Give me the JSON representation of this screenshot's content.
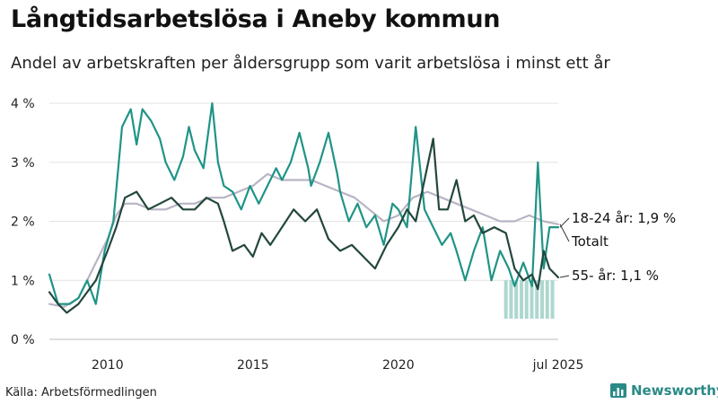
{
  "title": "Långtidsarbetslösa i Aneby kommun",
  "subtitle": "Andel av arbetskraften per åldersgrupp som varit arbetslösa i minst ett år",
  "source": "Källa: Arbetsförmedlingen",
  "brand": {
    "name": "Newsworthy",
    "icon": "bar-chart-icon",
    "color": "#2a8a86"
  },
  "chart_data": {
    "type": "line",
    "x_range": [
      2008.0,
      2025.5
    ],
    "ylim": [
      0,
      4
    ],
    "y_ticks": [
      {
        "value": 0,
        "label": "0 %"
      },
      {
        "value": 1,
        "label": "1 %"
      },
      {
        "value": 2,
        "label": "2 %"
      },
      {
        "value": 3,
        "label": "3 %"
      },
      {
        "value": 4,
        "label": "4 %"
      }
    ],
    "x_ticks": [
      {
        "value": 2010,
        "label": "2010"
      },
      {
        "value": 2015,
        "label": "2015"
      },
      {
        "value": 2020,
        "label": "2020"
      },
      {
        "value": 2025.5,
        "label": "jul 2025"
      }
    ],
    "grid": "horizontal",
    "series": [
      {
        "name": "Totalt",
        "end_label": "Totalt",
        "color": "#b9b4c4",
        "points": [
          [
            2008.0,
            0.6
          ],
          [
            2008.5,
            0.55
          ],
          [
            2009.0,
            0.7
          ],
          [
            2009.5,
            1.2
          ],
          [
            2010.0,
            1.7
          ],
          [
            2010.3,
            2.1
          ],
          [
            2010.6,
            2.3
          ],
          [
            2011.0,
            2.3
          ],
          [
            2011.5,
            2.2
          ],
          [
            2012.0,
            2.2
          ],
          [
            2012.5,
            2.3
          ],
          [
            2013.0,
            2.3
          ],
          [
            2013.5,
            2.4
          ],
          [
            2014.0,
            2.4
          ],
          [
            2014.5,
            2.5
          ],
          [
            2015.0,
            2.6
          ],
          [
            2015.5,
            2.8
          ],
          [
            2016.0,
            2.7
          ],
          [
            2016.5,
            2.7
          ],
          [
            2017.0,
            2.7
          ],
          [
            2017.5,
            2.6
          ],
          [
            2018.0,
            2.5
          ],
          [
            2018.5,
            2.4
          ],
          [
            2019.0,
            2.2
          ],
          [
            2019.5,
            2.0
          ],
          [
            2020.0,
            2.1
          ],
          [
            2020.5,
            2.4
          ],
          [
            2021.0,
            2.5
          ],
          [
            2021.5,
            2.4
          ],
          [
            2022.0,
            2.3
          ],
          [
            2022.5,
            2.2
          ],
          [
            2023.0,
            2.1
          ],
          [
            2023.5,
            2.0
          ],
          [
            2024.0,
            2.0
          ],
          [
            2024.5,
            2.1
          ],
          [
            2025.0,
            2.0
          ],
          [
            2025.5,
            1.95
          ]
        ]
      },
      {
        "name": "18-24 år",
        "end_label": "18-24 år: 1,9 %",
        "color": "#1f9486",
        "points": [
          [
            2008.0,
            1.1
          ],
          [
            2008.3,
            0.6
          ],
          [
            2008.7,
            0.6
          ],
          [
            2009.0,
            0.7
          ],
          [
            2009.3,
            1.0
          ],
          [
            2009.6,
            0.6
          ],
          [
            2009.9,
            1.5
          ],
          [
            2010.2,
            2.0
          ],
          [
            2010.5,
            3.6
          ],
          [
            2010.8,
            3.9
          ],
          [
            2011.0,
            3.3
          ],
          [
            2011.2,
            3.9
          ],
          [
            2011.5,
            3.7
          ],
          [
            2011.8,
            3.4
          ],
          [
            2012.0,
            3.0
          ],
          [
            2012.3,
            2.7
          ],
          [
            2012.6,
            3.1
          ],
          [
            2012.8,
            3.6
          ],
          [
            2013.0,
            3.2
          ],
          [
            2013.3,
            2.9
          ],
          [
            2013.6,
            4.0
          ],
          [
            2013.8,
            3.0
          ],
          [
            2014.0,
            2.6
          ],
          [
            2014.3,
            2.5
          ],
          [
            2014.6,
            2.2
          ],
          [
            2014.9,
            2.6
          ],
          [
            2015.2,
            2.3
          ],
          [
            2015.5,
            2.6
          ],
          [
            2015.8,
            2.9
          ],
          [
            2016.0,
            2.7
          ],
          [
            2016.3,
            3.0
          ],
          [
            2016.6,
            3.5
          ],
          [
            2016.9,
            2.9
          ],
          [
            2017.0,
            2.6
          ],
          [
            2017.3,
            3.0
          ],
          [
            2017.6,
            3.5
          ],
          [
            2017.9,
            2.8
          ],
          [
            2018.0,
            2.5
          ],
          [
            2018.3,
            2.0
          ],
          [
            2018.6,
            2.3
          ],
          [
            2018.9,
            1.9
          ],
          [
            2019.2,
            2.1
          ],
          [
            2019.5,
            1.6
          ],
          [
            2019.8,
            2.3
          ],
          [
            2020.0,
            2.2
          ],
          [
            2020.3,
            1.9
          ],
          [
            2020.6,
            3.6
          ],
          [
            2020.9,
            2.2
          ],
          [
            2021.2,
            1.9
          ],
          [
            2021.5,
            1.6
          ],
          [
            2021.8,
            1.8
          ],
          [
            2022.0,
            1.5
          ],
          [
            2022.3,
            1.0
          ],
          [
            2022.6,
            1.5
          ],
          [
            2022.9,
            1.9
          ],
          [
            2023.2,
            1.0
          ],
          [
            2023.5,
            1.5
          ],
          [
            2023.8,
            1.2
          ],
          [
            2024.0,
            0.9
          ],
          [
            2024.3,
            1.3
          ],
          [
            2024.6,
            0.9
          ],
          [
            2024.8,
            3.0
          ],
          [
            2025.0,
            1.2
          ],
          [
            2025.2,
            1.9
          ],
          [
            2025.5,
            1.9
          ]
        ]
      },
      {
        "name": "55- år",
        "end_label": "55- år: 1,1 %",
        "color": "#23473d",
        "points": [
          [
            2008.0,
            0.8
          ],
          [
            2008.3,
            0.6
          ],
          [
            2008.6,
            0.45
          ],
          [
            2009.0,
            0.6
          ],
          [
            2009.3,
            0.8
          ],
          [
            2009.6,
            1.0
          ],
          [
            2010.0,
            1.5
          ],
          [
            2010.3,
            1.9
          ],
          [
            2010.6,
            2.4
          ],
          [
            2011.0,
            2.5
          ],
          [
            2011.4,
            2.2
          ],
          [
            2011.8,
            2.3
          ],
          [
            2012.2,
            2.4
          ],
          [
            2012.6,
            2.2
          ],
          [
            2013.0,
            2.2
          ],
          [
            2013.4,
            2.4
          ],
          [
            2013.8,
            2.3
          ],
          [
            2014.0,
            2.0
          ],
          [
            2014.3,
            1.5
          ],
          [
            2014.7,
            1.6
          ],
          [
            2015.0,
            1.4
          ],
          [
            2015.3,
            1.8
          ],
          [
            2015.6,
            1.6
          ],
          [
            2016.0,
            1.9
          ],
          [
            2016.4,
            2.2
          ],
          [
            2016.8,
            2.0
          ],
          [
            2017.2,
            2.2
          ],
          [
            2017.6,
            1.7
          ],
          [
            2018.0,
            1.5
          ],
          [
            2018.4,
            1.6
          ],
          [
            2018.8,
            1.4
          ],
          [
            2019.2,
            1.2
          ],
          [
            2019.6,
            1.6
          ],
          [
            2020.0,
            1.9
          ],
          [
            2020.3,
            2.2
          ],
          [
            2020.6,
            2.0
          ],
          [
            2020.9,
            2.7
          ],
          [
            2021.2,
            3.4
          ],
          [
            2021.4,
            2.2
          ],
          [
            2021.7,
            2.2
          ],
          [
            2022.0,
            2.7
          ],
          [
            2022.3,
            2.0
          ],
          [
            2022.6,
            2.1
          ],
          [
            2022.9,
            1.8
          ],
          [
            2023.3,
            1.9
          ],
          [
            2023.7,
            1.8
          ],
          [
            2024.0,
            1.2
          ],
          [
            2024.3,
            1.0
          ],
          [
            2024.6,
            1.1
          ],
          [
            2024.8,
            0.85
          ],
          [
            2025.0,
            1.5
          ],
          [
            2025.2,
            1.2
          ],
          [
            2025.5,
            1.05
          ]
        ]
      }
    ],
    "confidence_band": {
      "color": "#9fd0c7",
      "x": [
        2023.7,
        2025.3
      ],
      "low": 0.35,
      "high": 1.0
    }
  }
}
